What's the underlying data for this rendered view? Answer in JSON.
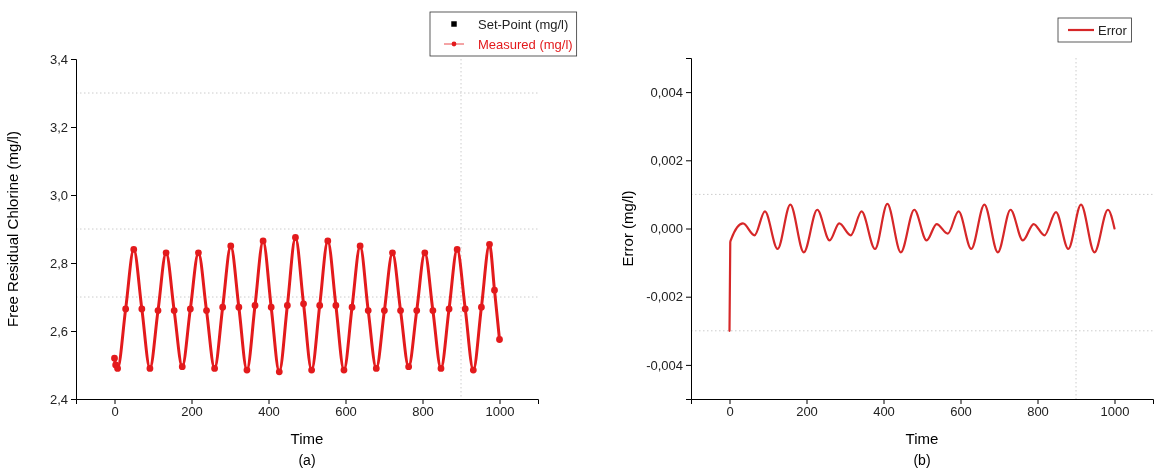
{
  "chart_data": [
    {
      "type": "line",
      "xlabel": "Time",
      "ylabel": "Free Residual Chlorine (mg/l)",
      "annotations": [
        "(a)"
      ],
      "legend": "top right",
      "xlim": [
        -100,
        1100
      ],
      "xticks": [
        0,
        200,
        400,
        600,
        800,
        1000
      ],
      "ylim": [
        2.4,
        3.4
      ],
      "yticks": [
        {
          "value": 2.4,
          "label": "2,4"
        },
        {
          "value": 2.6,
          "label": "2,6"
        },
        {
          "value": 2.8,
          "label": "2,8"
        },
        {
          "value": 3.0,
          "label": "3,0"
        },
        {
          "value": 3.2,
          "label": "3,2"
        },
        {
          "value": 3.4,
          "label": "3,4"
        }
      ],
      "ref_lines": [
        {
          "axis": "y",
          "value": 3.3,
          "color": "#cccccc",
          "line_style": "dotted"
        },
        {
          "axis": "y",
          "value": 2.9,
          "color": "#cccccc",
          "line_style": "dotted"
        },
        {
          "axis": "y",
          "value": 2.7,
          "color": "#cccccc",
          "line_style": "dotted"
        },
        {
          "axis": "x",
          "value": 900,
          "color": "#cccccc",
          "line_style": "dotted"
        }
      ],
      "x": [
        0,
        3,
        8,
        29,
        50,
        71,
        92,
        113,
        134,
        155,
        176,
        197,
        218,
        239,
        260,
        281,
        302,
        323,
        344,
        365,
        386,
        407,
        428,
        449,
        470,
        491,
        512,
        533,
        554,
        575,
        596,
        617,
        638,
        659,
        680,
        701,
        722,
        743,
        764,
        785,
        806,
        827,
        848,
        869,
        890,
        911,
        932,
        953,
        974,
        987,
        1000
      ],
      "series": [
        {
          "name": "Set-Point (mg/l)",
          "type": "scatter",
          "marker": "square",
          "color": "#000000",
          "values": [
            null,
            null,
            null,
            null,
            null,
            null,
            null,
            null,
            null,
            null,
            null,
            null,
            null,
            null,
            null,
            null,
            null,
            null,
            null,
            null,
            null,
            null,
            null,
            null,
            null,
            null,
            null,
            null,
            null,
            null,
            null,
            null,
            null,
            null,
            null,
            null,
            null,
            null,
            null,
            null,
            null,
            null,
            null,
            null,
            null,
            null,
            null,
            null,
            null,
            null,
            null
          ]
        },
        {
          "name": "Measured (mg/l)",
          "marker": "circle",
          "color": "#e31a1c",
          "values": [
            2.52,
            2.5,
            2.49,
            2.665,
            2.84,
            2.665,
            2.49,
            2.66,
            2.83,
            2.66,
            2.495,
            2.665,
            2.83,
            2.66,
            2.49,
            2.67,
            2.85,
            2.67,
            2.485,
            2.675,
            2.865,
            2.67,
            2.48,
            2.675,
            2.875,
            2.68,
            2.485,
            2.675,
            2.865,
            2.675,
            2.485,
            2.67,
            2.85,
            2.66,
            2.49,
            2.66,
            2.83,
            2.66,
            2.495,
            2.66,
            2.83,
            2.66,
            2.49,
            2.665,
            2.84,
            2.665,
            2.485,
            2.67,
            2.855,
            2.72,
            2.575
          ]
        }
      ]
    },
    {
      "type": "line",
      "xlabel": "Time",
      "ylabel": "Error (mg/l)",
      "annotations": [
        "(b)"
      ],
      "legend": "top right",
      "xlim": [
        -100,
        1100
      ],
      "xticks": [
        0,
        200,
        400,
        600,
        800,
        1000
      ],
      "ylim": [
        -0.005,
        0.005
      ],
      "yticks": [
        {
          "value": -0.004,
          "label": "-0,004"
        },
        {
          "value": -0.002,
          "label": "-0,002"
        },
        {
          "value": 0,
          "label": "0,000"
        },
        {
          "value": 0.002,
          "label": "0,002"
        },
        {
          "value": 0.004,
          "label": "0,004"
        }
      ],
      "ref_lines": [
        {
          "axis": "y",
          "value": 0.001,
          "color": "#cccccc",
          "line_style": "dotted"
        },
        {
          "axis": "y",
          "value": -0.003,
          "color": "#cccccc",
          "line_style": "dotted"
        },
        {
          "axis": "x",
          "value": 900,
          "color": "#cccccc",
          "line_style": "dotted"
        }
      ],
      "x": [
        0,
        2,
        5,
        35,
        65,
        92,
        125,
        158,
        193,
        228,
        260,
        285,
        315,
        343,
        378,
        410,
        445,
        480,
        512,
        538,
        567,
        595,
        628,
        662,
        697,
        730,
        762,
        790,
        818,
        848,
        880,
        913,
        948,
        983,
        1000
      ],
      "series": [
        {
          "name": "Error",
          "color": "#d62728",
          "values": [
            -0.003,
            -0.0004,
            -0.0003,
            0.00015,
            -0.0002,
            0.0005,
            -0.0006,
            0.0007,
            -0.0007,
            0.00055,
            -0.00035,
            0.00015,
            -0.0002,
            0.0005,
            -0.0006,
            0.00072,
            -0.0007,
            0.00055,
            -0.00035,
            0.00013,
            -0.00015,
            0.0005,
            -0.0006,
            0.0007,
            -0.0007,
            0.00055,
            -0.00035,
            0.00013,
            -0.0002,
            0.00048,
            -0.0006,
            0.0007,
            -0.0007,
            0.00055,
            0
          ]
        }
      ]
    }
  ]
}
